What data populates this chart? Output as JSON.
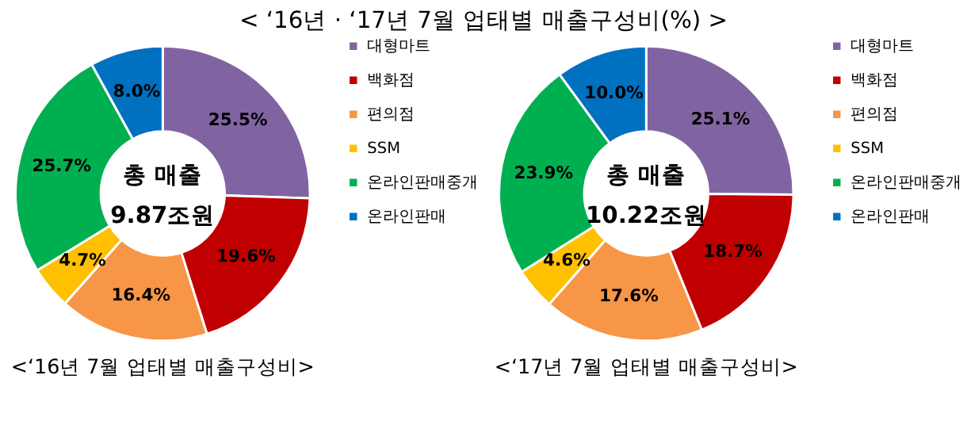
{
  "chart_data": [
    {
      "type": "donut",
      "title": "<‘16년 7월 업태별 매출구성비>",
      "annotations": [
        "< ‘16년 · ‘17년 7월 업태별 매출구성비(%) >",
        "총 매출",
        "9.87조원"
      ],
      "categories": [
        "대형마트",
        "백화점",
        "편의점",
        "SSM",
        "온라인판매중개",
        "온라인판매"
      ],
      "values": [
        25.5,
        19.6,
        16.4,
        4.7,
        25.7,
        8.0
      ],
      "value_labels": [
        "25.5%",
        "19.6%",
        "16.4%",
        "4.7%",
        "25.7%",
        "8.0%"
      ],
      "colors": [
        "#8064a2",
        "#c00000",
        "#f79646",
        "#ffc000",
        "#00b050",
        "#0070c0"
      ],
      "legend": "right"
    },
    {
      "type": "donut",
      "title": "<‘17년 7월 업태별 매출구성비>",
      "annotations": [
        "총 매출",
        "10.22조원"
      ],
      "categories": [
        "대형마트",
        "백화점",
        "편의점",
        "SSM",
        "온라인판매중개",
        "온라인판매"
      ],
      "values": [
        25.1,
        18.7,
        17.6,
        4.6,
        23.9,
        10.0
      ],
      "value_labels": [
        "25.1%",
        "18.7%",
        "17.6%",
        "4.6%",
        "23.9%",
        "10.0%"
      ],
      "colors": [
        "#8064a2",
        "#c00000",
        "#f79646",
        "#ffc000",
        "#00b050",
        "#0070c0"
      ],
      "legend": "right"
    }
  ]
}
